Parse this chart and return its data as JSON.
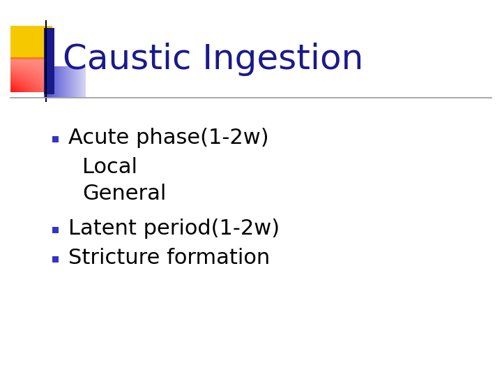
{
  "title": "Caustic Ingestion",
  "title_color": "#1a1a8c",
  "title_fontsize": 36,
  "background_color": "#ffffff",
  "bullet_color": "#3333cc",
  "bullet_items": [
    {
      "text": "Acute phase(1-2w)",
      "level": 0,
      "bullet": true
    },
    {
      "text": "Local",
      "level": 1,
      "bullet": false
    },
    {
      "text": "General",
      "level": 1,
      "bullet": false
    },
    {
      "text": "Latent period(1-2w)",
      "level": 0,
      "bullet": true
    },
    {
      "text": "Stricture formation",
      "level": 0,
      "bullet": true
    }
  ],
  "body_fontsize": 22,
  "body_color": "#000000",
  "deco_yellow": "#f5c800",
  "deco_red_top": "#ff8888",
  "deco_red_bottom": "#cc2233",
  "deco_blue_dark": "#1a1a8c",
  "deco_blue_light": "#4444cc",
  "line_color": "#333333",
  "header_line_color": "#999999"
}
